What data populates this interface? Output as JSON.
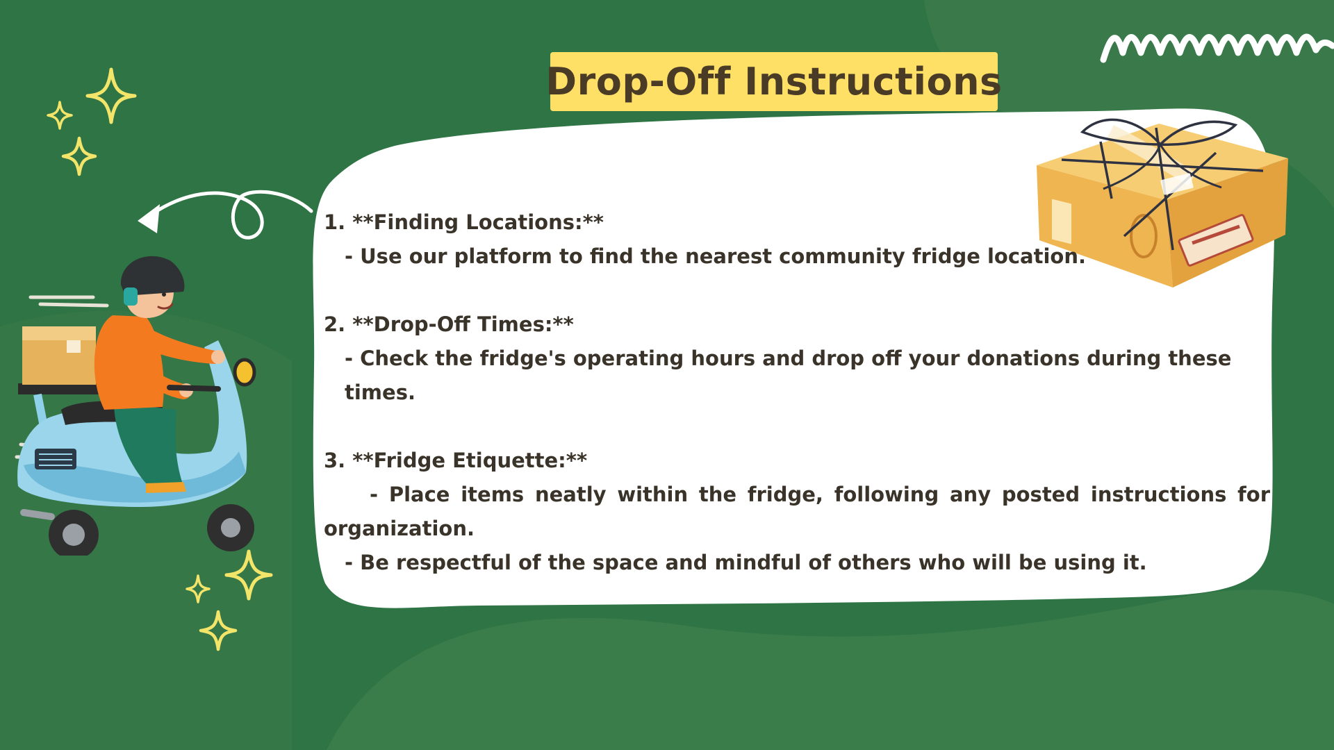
{
  "slide": {
    "title": "Drop-Off Instructions",
    "colors": {
      "background": "#2f7444",
      "background_shade": "#3a7a4a",
      "title_badge": "#ffe066",
      "title_text": "#4a3b26",
      "card": "#ffffff",
      "body_text": "#3a3329",
      "sparkle": "#f3e56a"
    },
    "sections": [
      {
        "heading": "1. **Finding Locations:**",
        "bullets": [
          "- Use our platform to find the nearest community fridge location."
        ]
      },
      {
        "heading": "2. **Drop-Off Times:**",
        "bullets": [
          "- Check the fridge's operating hours and drop off your donations during these times."
        ]
      },
      {
        "heading": "3. **Fridge Etiquette:**",
        "bullets": [
          "- Place items neatly within the fridge, following any posted instructions for organization.",
          "- Be respectful of the space and mindful of others who will be using it."
        ]
      }
    ],
    "illustrations": {
      "courier": "delivery-scooter-illustration",
      "package": "tied-package-illustration",
      "arrow": "curly-arrow-icon",
      "sparkle": "sparkle-icon",
      "zigzag": "zigzag-squiggle-icon"
    }
  }
}
